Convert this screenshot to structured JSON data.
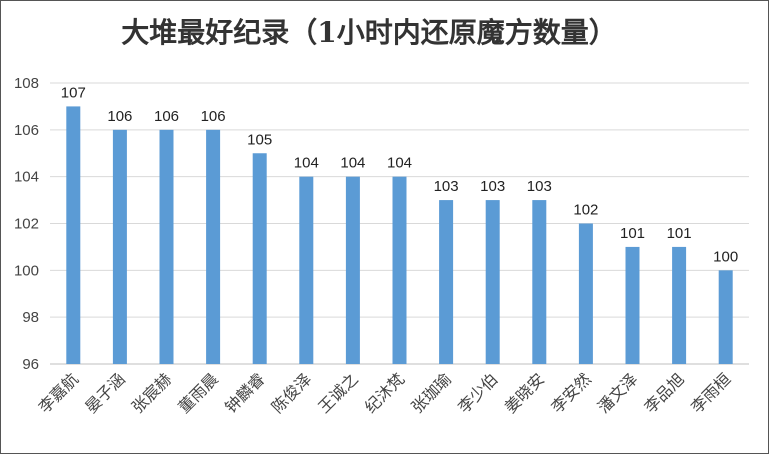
{
  "chart_data": {
    "type": "bar",
    "title": "大堆最好纪录（1小时内还原魔方数量）",
    "categories": [
      "李嘉航",
      "晏子涵",
      "张宸赫",
      "董雨晨",
      "钟麟睿",
      "陈俊泽",
      "王诚之",
      "纪沐梵",
      "张珈瑜",
      "李少伯",
      "姜晓安",
      "李安然",
      "潘文泽",
      "李品旭",
      "李雨桓"
    ],
    "values": [
      107,
      106,
      106,
      106,
      105,
      104,
      104,
      104,
      103,
      103,
      103,
      102,
      101,
      101,
      100
    ],
    "ylim": [
      96,
      108
    ],
    "yticks": [
      96,
      98,
      100,
      102,
      104,
      106,
      108
    ],
    "grid": true,
    "legend": "none",
    "bar_color": "#5b9bd5"
  }
}
